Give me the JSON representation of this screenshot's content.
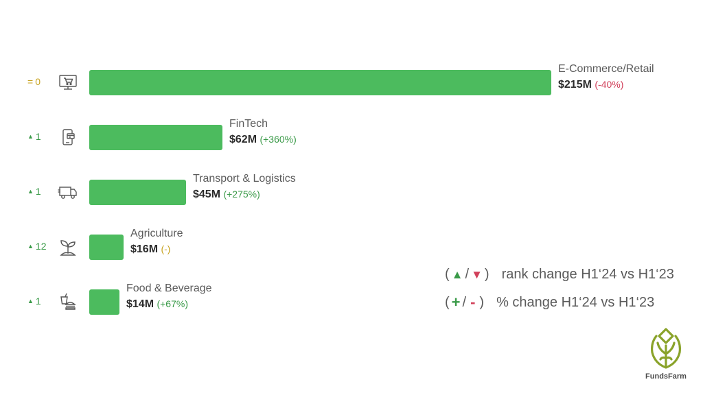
{
  "colors": {
    "bar": "#4cbb5e",
    "positive": "#3a9a48",
    "negative": "#d1405a",
    "neutral": "#c7a21e",
    "icon": "#555555"
  },
  "chart_data": {
    "type": "bar",
    "orientation": "horizontal",
    "unit": "$M",
    "categories": [
      "E-Commerce/Retail",
      "FinTech",
      "Transport & Logistics",
      "Agriculture",
      "Food & Beverage"
    ],
    "values": [
      215,
      62,
      45,
      16,
      14
    ],
    "value_labels": [
      "$215M",
      "$62M",
      "$45M",
      "$16M",
      "$14M"
    ],
    "change_labels": [
      "(-40%)",
      "(+360%)",
      "(+275%)",
      "(-)",
      "(+67%)"
    ],
    "change_direction": [
      "negative",
      "positive",
      "positive",
      "neutral",
      "positive"
    ],
    "rank_change": [
      {
        "symbol": "=",
        "value": "0",
        "direction": "neutral"
      },
      {
        "symbol": "▲",
        "value": "1",
        "direction": "up"
      },
      {
        "symbol": "▲",
        "value": "1",
        "direction": "up"
      },
      {
        "symbol": "▲",
        "value": "12",
        "direction": "up"
      },
      {
        "symbol": "▲",
        "value": "1",
        "direction": "up"
      }
    ],
    "icons": [
      "computer-cart-icon",
      "mobile-payment-icon",
      "delivery-truck-icon",
      "seedling-icon",
      "food-drink-icon"
    ],
    "xlim": [
      0,
      215
    ],
    "grid": false,
    "legend": "bottom-right"
  },
  "legend": {
    "rank": {
      "open": "(",
      "up": "▲",
      "slash": "/",
      "down": "▼",
      "close": ")",
      "text": "rank change H1‘24 vs H1‘23"
    },
    "pct": {
      "open": "(",
      "plus": "+",
      "slash": "/",
      "minus": "-",
      "close": ")",
      "text": "% change H1‘24 vs H1‘23"
    }
  },
  "brand": {
    "name": "FundsFarm",
    "color": "#8aa32a"
  }
}
